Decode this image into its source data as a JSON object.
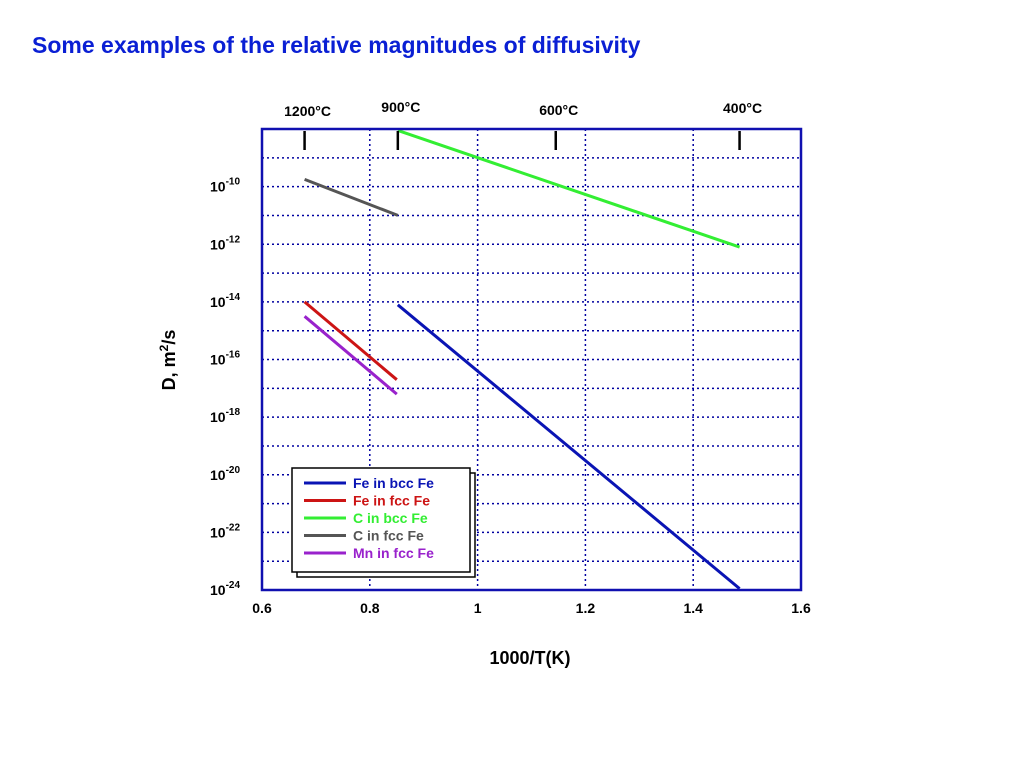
{
  "title": "Some examples of the relative magnitudes of diffusivity",
  "colors": {
    "title": "#0a1fd4",
    "frame": "#1010b0",
    "grid": "#0000a0"
  },
  "chart_data": {
    "type": "line",
    "xlabel": "1000/T(K)",
    "ylabel_base": "D, m",
    "ylabel_sup": "2",
    "ylabel_tail": "/s",
    "xlim": [
      0.6,
      1.6
    ],
    "ylim_log10": [
      -24,
      -8
    ],
    "x_ticks": [
      "0.6",
      "0.8",
      "1",
      "1.2",
      "1.4",
      "1.6"
    ],
    "x_tick_values": [
      0.6,
      0.8,
      1.0,
      1.2,
      1.4,
      1.6
    ],
    "y_ticks": [
      {
        "base": "10",
        "exp": "-10",
        "log10": -10
      },
      {
        "base": "10",
        "exp": "-12",
        "log10": -12
      },
      {
        "base": "10",
        "exp": "-14",
        "log10": -14
      },
      {
        "base": "10",
        "exp": "-16",
        "log10": -16
      },
      {
        "base": "10",
        "exp": "-18",
        "log10": -18
      },
      {
        "base": "10",
        "exp": "-20",
        "log10": -20
      },
      {
        "base": "10",
        "exp": "-22",
        "log10": -22
      },
      {
        "base": "10",
        "exp": "-24",
        "log10": -24
      }
    ],
    "top_axis_temperatures": [
      {
        "label": "1200°C",
        "x": 0.679
      },
      {
        "label": "900°C",
        "x": 0.852
      },
      {
        "label": "600°C",
        "x": 1.145
      },
      {
        "label": "400°C",
        "x": 1.486
      }
    ],
    "grid": true,
    "legend_position": "bottom-left",
    "series": [
      {
        "name": "Fe in bcc Fe",
        "color": "#0a14b4",
        "x": [
          0.852,
          1.486
        ],
        "log10_y": [
          -14.1,
          -23.95
        ]
      },
      {
        "name": "Fe in fcc Fe",
        "color": "#cc1414",
        "x": [
          0.679,
          0.85
        ],
        "log10_y": [
          -14.0,
          -16.7
        ]
      },
      {
        "name": "C in bcc Fe",
        "color": "#33ee33",
        "x": [
          0.852,
          1.486
        ],
        "log10_y": [
          -8.05,
          -12.1
        ]
      },
      {
        "name": "C in fcc Fe",
        "color": "#555555",
        "x": [
          0.679,
          0.852
        ],
        "log10_y": [
          -9.75,
          -11.0
        ]
      },
      {
        "name": "Mn in fcc Fe",
        "color": "#9922cc",
        "x": [
          0.679,
          0.85
        ],
        "log10_y": [
          -14.5,
          -17.2
        ]
      }
    ]
  }
}
